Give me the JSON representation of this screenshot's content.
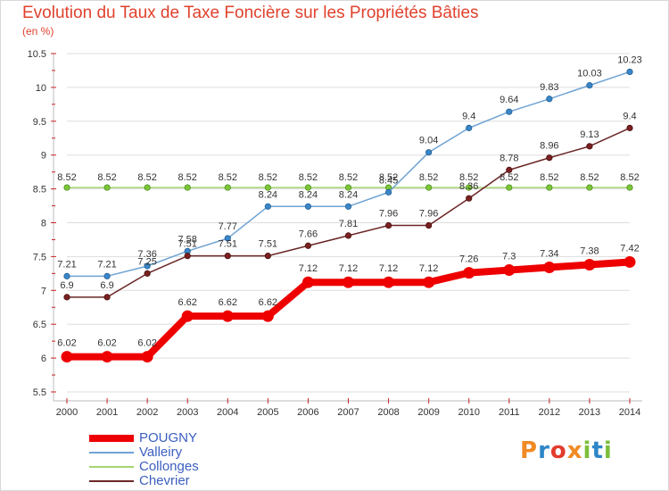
{
  "chart_data": {
    "type": "line",
    "title": "Evolution du Taux de Taxe Foncière sur les Propriétés Bâties",
    "unit": "(en %)",
    "x": [
      "2000",
      "2001",
      "2002",
      "2003",
      "2004",
      "2005",
      "2006",
      "2007",
      "2008",
      "2009",
      "2010",
      "2011",
      "2012",
      "2013",
      "2014"
    ],
    "ylim": [
      5.5,
      10.5
    ],
    "yticks": [
      "5.5",
      "6",
      "6.5",
      "7",
      "7.5",
      "8",
      "8.5",
      "9",
      "9.5",
      "10",
      "10.5"
    ],
    "series": [
      {
        "name": "POUGNY",
        "color": "#ee0000",
        "values": [
          6.02,
          6.02,
          6.02,
          6.62,
          6.62,
          6.62,
          7.12,
          7.12,
          7.12,
          7.12,
          7.26,
          7.3,
          7.34,
          7.38,
          7.42
        ],
        "labels": [
          "6.02",
          "6.02",
          "6.02",
          "6.62",
          "6.62",
          "6.62",
          "7.12",
          "7.12",
          "7.12",
          "7.12",
          "7.26",
          "7.3",
          "7.34",
          "7.38",
          "7.42"
        ]
      },
      {
        "name": "Valleiry",
        "color": "#6fa3d3",
        "values": [
          7.21,
          7.21,
          7.36,
          7.58,
          7.77,
          8.24,
          8.24,
          8.24,
          8.45,
          9.04,
          9.4,
          9.64,
          9.83,
          10.03,
          10.23
        ],
        "labels": [
          "7.21",
          "7.21",
          "7.36",
          "7.58",
          "7.77",
          "8.24",
          "8.24",
          "8.24",
          "8.45",
          "9.04",
          "9.4",
          "9.64",
          "9.83",
          "10.03",
          "10.23"
        ]
      },
      {
        "name": "Collonges",
        "color": "#a4d46f",
        "values": [
          8.52,
          8.52,
          8.52,
          8.52,
          8.52,
          8.52,
          8.52,
          8.52,
          8.52,
          8.52,
          8.52,
          8.52,
          8.52,
          8.52,
          8.52
        ],
        "labels": [
          "8.52",
          "8.52",
          "8.52",
          "8.52",
          "8.52",
          "8.52",
          "8.52",
          "8.52",
          "8.52",
          "8.52",
          "8.52",
          "8.52",
          "8.52",
          "8.52",
          "8.52"
        ]
      },
      {
        "name": "Chevrier",
        "color": "#6b2626",
        "values": [
          6.9,
          6.9,
          7.25,
          7.51,
          7.51,
          7.51,
          7.66,
          7.81,
          7.96,
          7.96,
          8.36,
          8.78,
          8.96,
          9.13,
          9.4
        ],
        "labels": [
          "6.9",
          "6.9",
          "7.25",
          "7.51",
          "7.51",
          "7.51",
          "7.66",
          "7.81",
          "7.96",
          "7.96",
          "8.36",
          "8.78",
          "8.96",
          "9.13",
          "9.4"
        ]
      }
    ]
  },
  "logo": {
    "text": "Proxiti",
    "letters": [
      "P",
      "r",
      "o",
      "x",
      "i",
      "t",
      "i"
    ],
    "colors": [
      "#f08a24",
      "#2e86c8",
      "#e23c2e",
      "#f08a24",
      "#7cbf3a",
      "#2e86c8",
      "#7cbf3a"
    ]
  }
}
